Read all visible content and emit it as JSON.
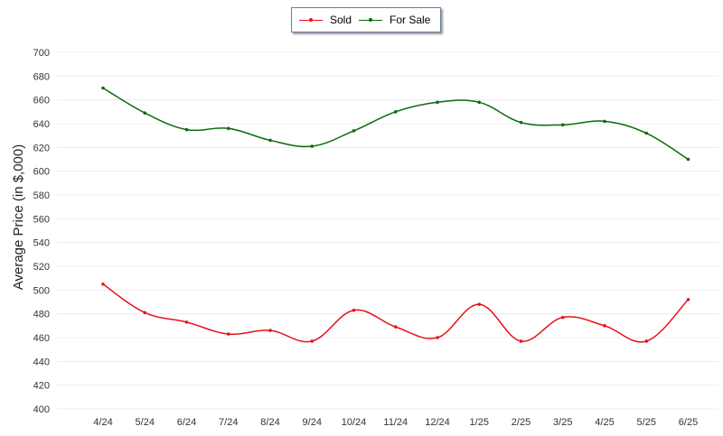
{
  "legend": {
    "items": [
      {
        "label": "Sold",
        "color": "#e8121a"
      },
      {
        "label": "For Sale",
        "color": "#0b6b0b"
      }
    ]
  },
  "chart_data": {
    "type": "line",
    "categories": [
      "4/24",
      "5/24",
      "6/24",
      "7/24",
      "8/24",
      "9/24",
      "10/24",
      "11/24",
      "12/24",
      "1/25",
      "2/25",
      "3/25",
      "4/25",
      "5/25",
      "6/25"
    ],
    "series": [
      {
        "name": "Sold",
        "color": "#e8121a",
        "values": [
          505,
          481,
          473,
          463,
          466,
          457,
          483,
          469,
          460,
          488,
          457,
          477,
          470,
          457,
          492
        ]
      },
      {
        "name": "For Sale",
        "color": "#0b6b0b",
        "values": [
          670,
          649,
          635,
          636,
          626,
          621,
          634,
          650,
          658,
          658,
          641,
          639,
          642,
          632,
          610
        ]
      }
    ],
    "ylabel": "Average Price (in $,000)",
    "xlabel": "",
    "ylim": [
      400,
      700
    ],
    "yticks": [
      400,
      420,
      440,
      460,
      480,
      500,
      520,
      540,
      560,
      580,
      600,
      620,
      640,
      660,
      680,
      700
    ],
    "grid": true,
    "legend_position": "top-center"
  }
}
